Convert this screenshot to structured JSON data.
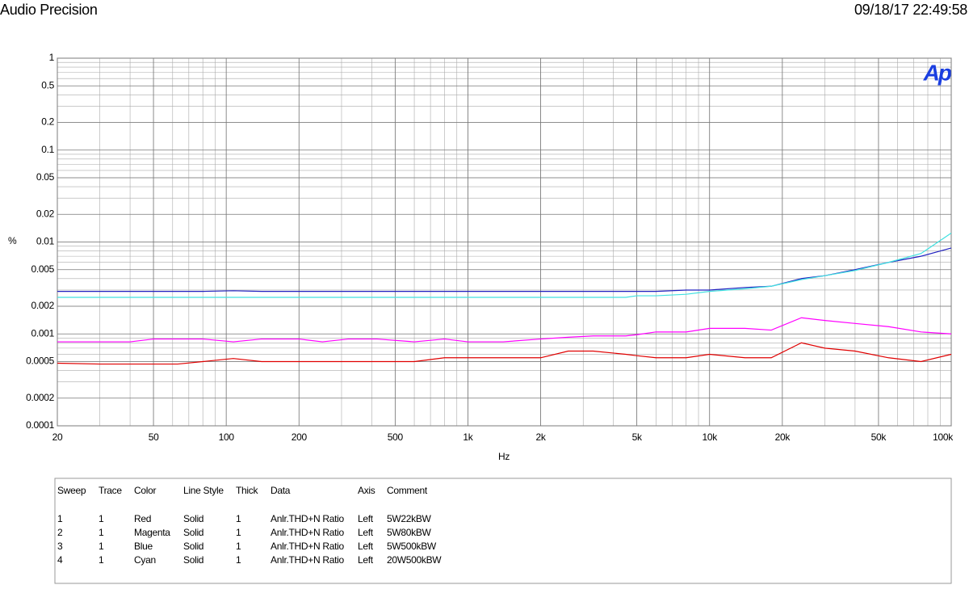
{
  "header": {
    "title": "Audio Precision",
    "timestamp": "09/18/17 22:49:58"
  },
  "chart_data": {
    "type": "line",
    "logo": "Ap",
    "y_label": "%",
    "x_label": "Hz",
    "xscale": "log",
    "yscale": "log",
    "grid": true,
    "xlim": [
      20,
      100000
    ],
    "ylim": [
      0.0001,
      1
    ],
    "xticks": [
      20,
      50,
      100,
      200,
      500,
      {
        "value": 1000,
        "label": "1k"
      },
      {
        "value": 2000,
        "label": "2k"
      },
      {
        "value": 5000,
        "label": "5k"
      },
      {
        "value": 10000,
        "label": "10k"
      },
      {
        "value": 20000,
        "label": "20k"
      },
      {
        "value": 50000,
        "label": "50k"
      },
      {
        "value": 100000,
        "label": "100k"
      }
    ],
    "yticks": [
      1,
      0.5,
      0.2,
      0.1,
      0.05,
      0.02,
      0.01,
      0.005,
      0.002,
      0.001,
      0.0005,
      0.0002,
      0.0001
    ],
    "x": [
      20,
      30,
      40,
      50,
      63,
      80,
      107,
      140,
      200,
      250,
      320,
      420,
      600,
      800,
      1000,
      1400,
      2000,
      2600,
      3300,
      4500,
      5000,
      6000,
      8000,
      10000,
      14000,
      18000,
      24000,
      30000,
      40000,
      55000,
      75000,
      100000
    ],
    "series": [
      {
        "color": "#e00000",
        "values": [
          0.00048,
          0.00047,
          0.00047,
          0.00047,
          0.00047,
          0.0005,
          0.00054,
          0.0005,
          0.0005,
          0.0005,
          0.0005,
          0.0005,
          0.0005,
          0.00055,
          0.00055,
          0.00055,
          0.00055,
          0.00065,
          0.00065,
          0.0006,
          0.00058,
          0.00055,
          0.00055,
          0.0006,
          0.00055,
          0.00055,
          0.0008,
          0.0007,
          0.00065,
          0.00055,
          0.0005,
          0.0006
        ]
      },
      {
        "color": "#ff00ff",
        "values": [
          0.00082,
          0.00082,
          0.00082,
          0.00088,
          0.00088,
          0.00088,
          0.00082,
          0.00088,
          0.00088,
          0.00082,
          0.00088,
          0.00088,
          0.00082,
          0.00088,
          0.00082,
          0.00082,
          0.00088,
          0.00092,
          0.00095,
          0.00095,
          0.00098,
          0.00105,
          0.00105,
          0.00115,
          0.00115,
          0.0011,
          0.0015,
          0.0014,
          0.0013,
          0.0012,
          0.00105,
          0.001
        ]
      },
      {
        "color": "#2020c0",
        "values": [
          0.0029,
          0.0029,
          0.0029,
          0.0029,
          0.0029,
          0.0029,
          0.00295,
          0.0029,
          0.0029,
          0.0029,
          0.0029,
          0.0029,
          0.0029,
          0.0029,
          0.0029,
          0.0029,
          0.0029,
          0.0029,
          0.0029,
          0.0029,
          0.0029,
          0.0029,
          0.003,
          0.003,
          0.0032,
          0.0033,
          0.004,
          0.0043,
          0.005,
          0.006,
          0.007,
          0.0086
        ]
      },
      {
        "color": "#40e0e0",
        "values": [
          0.0025,
          0.0025,
          0.0025,
          0.0025,
          0.0025,
          0.0025,
          0.0025,
          0.0025,
          0.0025,
          0.0025,
          0.0025,
          0.0025,
          0.0025,
          0.0025,
          0.0025,
          0.0025,
          0.0025,
          0.0025,
          0.0025,
          0.0025,
          0.0026,
          0.0026,
          0.0027,
          0.0029,
          0.0031,
          0.0033,
          0.0039,
          0.0043,
          0.0049,
          0.006,
          0.0075,
          0.0125
        ]
      }
    ]
  },
  "table": {
    "columns": [
      "Sweep",
      "Trace",
      "Color",
      "Line Style",
      "Thick",
      "Data",
      "Axis",
      "Comment"
    ],
    "rows": [
      [
        "1",
        "1",
        "Red",
        "Solid",
        "1",
        "Anlr.THD+N Ratio",
        "Left",
        "5W22kBW"
      ],
      [
        "2",
        "1",
        "Magenta",
        "Solid",
        "1",
        "Anlr.THD+N Ratio",
        "Left",
        "5W80kBW"
      ],
      [
        "3",
        "1",
        "Blue",
        "Solid",
        "1",
        "Anlr.THD+N Ratio",
        "Left",
        "5W500kBW"
      ],
      [
        "4",
        "1",
        "Cyan",
        "Solid",
        "1",
        "Anlr.THD+N Ratio",
        "Left",
        "20W500kBW"
      ]
    ]
  }
}
